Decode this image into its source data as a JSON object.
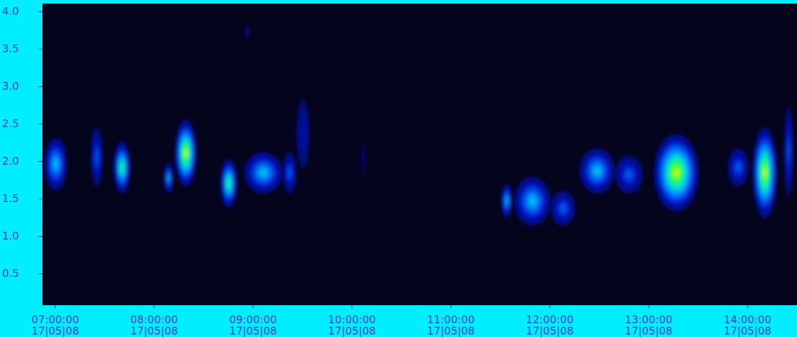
{
  "chart_data": {
    "type": "spectrogram",
    "xlim": [
      6.87,
      14.5
    ],
    "ylim": [
      0.08,
      4.11
    ],
    "xticks": [
      {
        "value": 7,
        "label": "07:00:00"
      },
      {
        "value": 8,
        "label": "08:00:00"
      },
      {
        "value": 9,
        "label": "09:00:00"
      },
      {
        "value": 10,
        "label": "10:00:00"
      },
      {
        "value": 11,
        "label": "11:00:00"
      },
      {
        "value": 12,
        "label": "12:00:00"
      },
      {
        "value": 13,
        "label": "13:00:00"
      },
      {
        "value": 14,
        "label": "14:00:00"
      }
    ],
    "xtick_dates": [
      "17|05|08",
      "17|05|08",
      "17|05|08",
      "17|05|08",
      "17|05|08",
      "17|05|08",
      "17|05|08",
      "17|05|08"
    ],
    "yticks": [
      {
        "value": 4,
        "label": "4.0"
      },
      3.5,
      {
        "value": 3,
        "label": "3.0"
      },
      2.5,
      {
        "value": 2,
        "label": "2.0"
      },
      1.5,
      {
        "value": 1,
        "label": "1.0"
      },
      0.5
    ],
    "blobs": [
      {
        "x": [
          6.89,
          7.12
        ],
        "y": [
          1.61,
          2.32
        ],
        "level": 0.5
      },
      {
        "x": [
          7.36,
          7.48
        ],
        "y": [
          1.66,
          2.46
        ],
        "level": 0.4
      },
      {
        "x": [
          7.59,
          7.76
        ],
        "y": [
          1.57,
          2.27
        ],
        "level": 0.65
      },
      {
        "x": [
          8.1,
          8.19
        ],
        "y": [
          1.57,
          1.99
        ],
        "level": 0.5
      },
      {
        "x": [
          8.21,
          8.43
        ],
        "y": [
          1.66,
          2.56
        ],
        "level": 0.8
      },
      {
        "x": [
          8.67,
          8.84
        ],
        "y": [
          1.38,
          2.04
        ],
        "level": 0.7
      },
      {
        "x": [
          8.91,
          9.3
        ],
        "y": [
          1.57,
          2.13
        ],
        "level": 0.6
      },
      {
        "x": [
          9.3,
          9.44
        ],
        "y": [
          1.57,
          2.13
        ],
        "level": 0.45
      },
      {
        "x": [
          9.44,
          9.57
        ],
        "y": [
          1.9,
          2.84
        ],
        "level": 0.25
      },
      {
        "x": [
          8.92,
          8.96
        ],
        "y": [
          3.64,
          3.83
        ],
        "level": 0.2
      },
      {
        "x": [
          10.1,
          10.13
        ],
        "y": [
          1.8,
          2.27
        ],
        "level": 0.2
      },
      {
        "x": [
          11.51,
          11.62
        ],
        "y": [
          1.24,
          1.71
        ],
        "level": 0.5
      },
      {
        "x": [
          11.64,
          12.01
        ],
        "y": [
          1.14,
          1.8
        ],
        "level": 0.55
      },
      {
        "x": [
          12.01,
          12.26
        ],
        "y": [
          1.14,
          1.61
        ],
        "level": 0.45
      },
      {
        "x": [
          12.3,
          12.66
        ],
        "y": [
          1.57,
          2.18
        ],
        "level": 0.5
      },
      {
        "x": [
          12.66,
          12.94
        ],
        "y": [
          1.57,
          2.08
        ],
        "level": 0.45
      },
      {
        "x": [
          13.05,
          13.51
        ],
        "y": [
          1.33,
          2.37
        ],
        "level": 0.85
      },
      {
        "x": [
          13.8,
          14.01
        ],
        "y": [
          1.66,
          2.18
        ],
        "level": 0.4
      },
      {
        "x": [
          14.05,
          14.3
        ],
        "y": [
          1.24,
          2.46
        ],
        "level": 0.8
      },
      {
        "x": [
          14.37,
          14.46
        ],
        "y": [
          1.52,
          2.75
        ],
        "level": 0.3
      }
    ]
  }
}
